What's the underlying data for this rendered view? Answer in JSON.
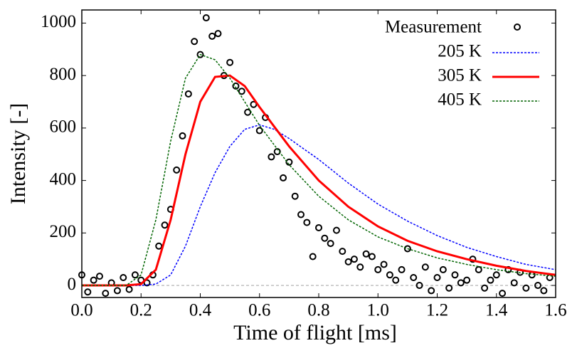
{
  "chart_data": {
    "type": "line",
    "xlabel": "Time of flight [ms]",
    "ylabel": "Intensity [-]",
    "xlim": [
      0,
      1.6
    ],
    "ylim": [
      -46,
      1050
    ],
    "xticks": [
      {
        "value": 0,
        "label": "0.0"
      },
      {
        "value": 0.2,
        "label": "0.2"
      },
      {
        "value": 0.4,
        "label": "0.4"
      },
      {
        "value": 0.6,
        "label": "0.6"
      },
      {
        "value": 0.8,
        "label": "0.8"
      },
      {
        "value": 1.0,
        "label": "1.0"
      },
      {
        "value": 1.2,
        "label": "1.2"
      },
      {
        "value": 1.4,
        "label": "1.4"
      },
      {
        "value": 1.6,
        "label": "1.6"
      }
    ],
    "yticks": [
      0,
      200,
      400,
      600,
      800,
      1000
    ],
    "hline": 0,
    "legend": "upper right",
    "series": [
      {
        "name": "Measurement",
        "color": "#000000",
        "style": "markers",
        "x": [
          0.0,
          0.02,
          0.04,
          0.06,
          0.08,
          0.1,
          0.12,
          0.14,
          0.16,
          0.18,
          0.2,
          0.22,
          0.24,
          0.26,
          0.28,
          0.3,
          0.32,
          0.34,
          0.36,
          0.38,
          0.4,
          0.42,
          0.44,
          0.46,
          0.48,
          0.5,
          0.52,
          0.54,
          0.56,
          0.58,
          0.6,
          0.62,
          0.64,
          0.66,
          0.68,
          0.7,
          0.72,
          0.74,
          0.76,
          0.78,
          0.8,
          0.82,
          0.84,
          0.86,
          0.88,
          0.9,
          0.92,
          0.94,
          0.96,
          0.98,
          1.0,
          1.02,
          1.04,
          1.06,
          1.08,
          1.1,
          1.12,
          1.14,
          1.16,
          1.18,
          1.2,
          1.22,
          1.24,
          1.26,
          1.28,
          1.3,
          1.32,
          1.34,
          1.36,
          1.38,
          1.4,
          1.42,
          1.44,
          1.46,
          1.48,
          1.5,
          1.52,
          1.54,
          1.56,
          1.58
        ],
        "values": [
          40,
          -25,
          20,
          35,
          -30,
          10,
          -20,
          30,
          -15,
          40,
          20,
          10,
          40,
          150,
          230,
          290,
          440,
          570,
          730,
          930,
          880,
          1020,
          950,
          960,
          800,
          850,
          760,
          740,
          660,
          690,
          590,
          640,
          490,
          510,
          410,
          470,
          340,
          270,
          240,
          110,
          220,
          180,
          160,
          210,
          130,
          90,
          100,
          70,
          120,
          110,
          60,
          80,
          40,
          20,
          60,
          140,
          30,
          0,
          70,
          -20,
          30,
          60,
          -10,
          40,
          10,
          20,
          100,
          60,
          -10,
          20,
          40,
          -30,
          60,
          10,
          50,
          -10,
          40,
          0,
          -20,
          30
        ]
      },
      {
        "name": "205 K",
        "color": "#0000ff",
        "style": "dotted",
        "x": [
          0,
          0.2,
          0.25,
          0.3,
          0.35,
          0.4,
          0.45,
          0.5,
          0.55,
          0.6,
          0.65,
          0.7,
          0.8,
          0.9,
          1.0,
          1.1,
          1.2,
          1.3,
          1.4,
          1.5,
          1.6
        ],
        "values": [
          0,
          0,
          5,
          40,
          150,
          300,
          430,
          530,
          595,
          612,
          595,
          560,
          480,
          390,
          310,
          245,
          190,
          145,
          110,
          80,
          60
        ]
      },
      {
        "name": "305 K",
        "color": "#ff0000",
        "style": "solid",
        "x": [
          0,
          0.15,
          0.2,
          0.25,
          0.3,
          0.35,
          0.4,
          0.45,
          0.5,
          0.55,
          0.6,
          0.7,
          0.8,
          0.9,
          1.0,
          1.1,
          1.2,
          1.3,
          1.4,
          1.5,
          1.6
        ],
        "values": [
          0,
          0,
          5,
          60,
          250,
          500,
          700,
          795,
          800,
          760,
          680,
          530,
          400,
          300,
          225,
          170,
          130,
          100,
          75,
          55,
          40
        ]
      },
      {
        "name": "405 K",
        "color": "#006400",
        "style": "dotted",
        "x": [
          0,
          0.15,
          0.2,
          0.25,
          0.3,
          0.35,
          0.4,
          0.45,
          0.5,
          0.55,
          0.6,
          0.7,
          0.8,
          0.9,
          1.0,
          1.1,
          1.2,
          1.3,
          1.4,
          1.5,
          1.6
        ],
        "values": [
          0,
          0,
          40,
          250,
          550,
          790,
          880,
          860,
          790,
          700,
          610,
          460,
          340,
          250,
          185,
          140,
          105,
          80,
          60,
          45,
          35
        ]
      }
    ]
  }
}
